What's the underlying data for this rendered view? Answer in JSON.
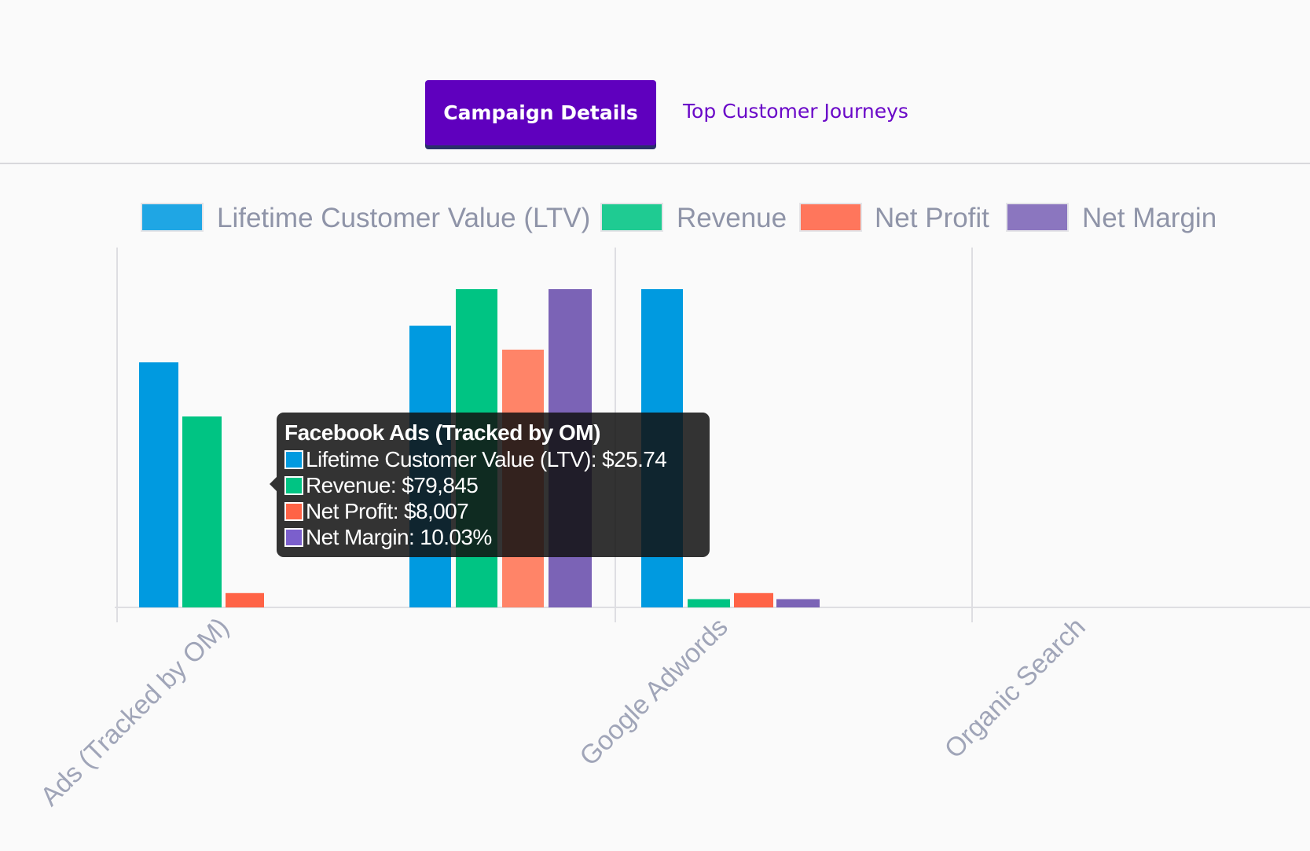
{
  "tabs": {
    "active_label": "Campaign Details",
    "secondary_label": "Top Customer Journeys"
  },
  "chart_data": {
    "type": "bar",
    "title": "",
    "xlabel": "",
    "ylabel": "",
    "legend": "top",
    "grid": "vertical",
    "categories": [
      "Ads (Tracked by OM)",
      "Google Adwords",
      "Organic Search"
    ],
    "series": [
      {
        "name": "Lifetime Customer Value (LTV)",
        "color": "#009ae0",
        "values": [
          77,
          100,
          0
        ]
      },
      {
        "name": "Revenue",
        "color": "#00c483",
        "values": [
          60,
          2.6,
          0
        ]
      },
      {
        "name": "Net Profit",
        "color": "#ff6346",
        "values": [
          4.5,
          4.5,
          0
        ]
      },
      {
        "name": "Net Margin",
        "color": "#7b63b6",
        "values": [
          0,
          2.6,
          0
        ]
      }
    ],
    "partial_group": {
      "label": "Facebook Ads (Tracked by OM)",
      "values": [
        88.5,
        100,
        81,
        100
      ],
      "bar_colors": [
        "#009ae0",
        "#00c483",
        "#ff8468",
        "#7b63b6"
      ]
    },
    "ylim": [
      0,
      100
    ]
  },
  "tooltip": {
    "title": "Facebook Ads (Tracked by OM)",
    "rows": [
      {
        "label": "Lifetime Customer Value (LTV): $25.74",
        "color": "#009ae0"
      },
      {
        "label": "Revenue: $79,845",
        "color": "#00c483"
      },
      {
        "label": "Net Profit: $8,007",
        "color": "#ff6346"
      },
      {
        "label": "Net Margin: 10.03%",
        "color": "#7b5fcc"
      }
    ]
  }
}
